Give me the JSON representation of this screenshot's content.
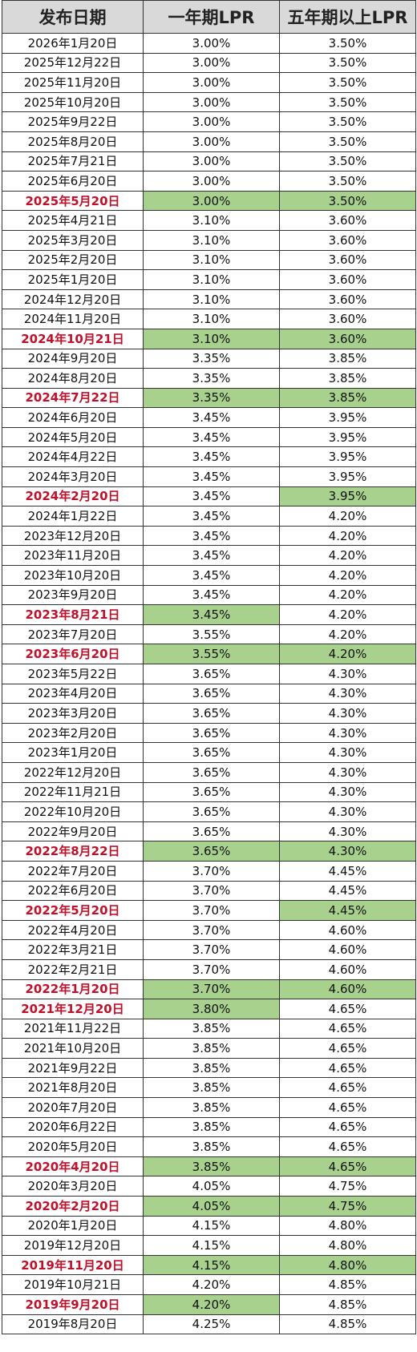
{
  "table": {
    "headers": [
      "发布日期",
      "一年期LPR",
      "五年期以上LPR"
    ],
    "rows": [
      {
        "date": "2026年1月20日",
        "one": "3.00%",
        "five": "3.50%",
        "cut": false,
        "g1": false,
        "g5": false
      },
      {
        "date": "2025年12月22日",
        "one": "3.00%",
        "five": "3.50%",
        "cut": false,
        "g1": false,
        "g5": false
      },
      {
        "date": "2025年11月20日",
        "one": "3.00%",
        "five": "3.50%",
        "cut": false,
        "g1": false,
        "g5": false
      },
      {
        "date": "2025年10月20日",
        "one": "3.00%",
        "five": "3.50%",
        "cut": false,
        "g1": false,
        "g5": false
      },
      {
        "date": "2025年9月22日",
        "one": "3.00%",
        "five": "3.50%",
        "cut": false,
        "g1": false,
        "g5": false
      },
      {
        "date": "2025年8月20日",
        "one": "3.00%",
        "five": "3.50%",
        "cut": false,
        "g1": false,
        "g5": false
      },
      {
        "date": "2025年7月21日",
        "one": "3.00%",
        "five": "3.50%",
        "cut": false,
        "g1": false,
        "g5": false
      },
      {
        "date": "2025年6月20日",
        "one": "3.00%",
        "five": "3.50%",
        "cut": false,
        "g1": false,
        "g5": false
      },
      {
        "date": "2025年5月20日",
        "one": "3.00%",
        "five": "3.50%",
        "cut": true,
        "g1": true,
        "g5": true
      },
      {
        "date": "2025年4月21日",
        "one": "3.10%",
        "five": "3.60%",
        "cut": false,
        "g1": false,
        "g5": false
      },
      {
        "date": "2025年3月20日",
        "one": "3.10%",
        "five": "3.60%",
        "cut": false,
        "g1": false,
        "g5": false
      },
      {
        "date": "2025年2月20日",
        "one": "3.10%",
        "five": "3.60%",
        "cut": false,
        "g1": false,
        "g5": false
      },
      {
        "date": "2025年1月20日",
        "one": "3.10%",
        "five": "3.60%",
        "cut": false,
        "g1": false,
        "g5": false
      },
      {
        "date": "2024年12月20日",
        "one": "3.10%",
        "five": "3.60%",
        "cut": false,
        "g1": false,
        "g5": false
      },
      {
        "date": "2024年11月20日",
        "one": "3.10%",
        "five": "3.60%",
        "cut": false,
        "g1": false,
        "g5": false
      },
      {
        "date": "2024年10月21日",
        "one": "3.10%",
        "five": "3.60%",
        "cut": true,
        "g1": true,
        "g5": true
      },
      {
        "date": "2024年9月20日",
        "one": "3.35%",
        "five": "3.85%",
        "cut": false,
        "g1": false,
        "g5": false
      },
      {
        "date": "2024年8月20日",
        "one": "3.35%",
        "five": "3.85%",
        "cut": false,
        "g1": false,
        "g5": false
      },
      {
        "date": "2024年7月22日",
        "one": "3.35%",
        "five": "3.85%",
        "cut": true,
        "g1": true,
        "g5": true
      },
      {
        "date": "2024年6月20日",
        "one": "3.45%",
        "five": "3.95%",
        "cut": false,
        "g1": false,
        "g5": false
      },
      {
        "date": "2024年5月20日",
        "one": "3.45%",
        "five": "3.95%",
        "cut": false,
        "g1": false,
        "g5": false
      },
      {
        "date": "2024年4月22日",
        "one": "3.45%",
        "five": "3.95%",
        "cut": false,
        "g1": false,
        "g5": false
      },
      {
        "date": "2024年3月20日",
        "one": "3.45%",
        "five": "3.95%",
        "cut": false,
        "g1": false,
        "g5": false
      },
      {
        "date": "2024年2月20日",
        "one": "3.45%",
        "five": "3.95%",
        "cut": true,
        "g1": false,
        "g5": true
      },
      {
        "date": "2024年1月22日",
        "one": "3.45%",
        "five": "4.20%",
        "cut": false,
        "g1": false,
        "g5": false
      },
      {
        "date": "2023年12月20日",
        "one": "3.45%",
        "five": "4.20%",
        "cut": false,
        "g1": false,
        "g5": false
      },
      {
        "date": "2023年11月20日",
        "one": "3.45%",
        "five": "4.20%",
        "cut": false,
        "g1": false,
        "g5": false
      },
      {
        "date": "2023年10月20日",
        "one": "3.45%",
        "five": "4.20%",
        "cut": false,
        "g1": false,
        "g5": false
      },
      {
        "date": "2023年9月20日",
        "one": "3.45%",
        "five": "4.20%",
        "cut": false,
        "g1": false,
        "g5": false
      },
      {
        "date": "2023年8月21日",
        "one": "3.45%",
        "five": "4.20%",
        "cut": true,
        "g1": true,
        "g5": false
      },
      {
        "date": "2023年7月20日",
        "one": "3.55%",
        "five": "4.20%",
        "cut": false,
        "g1": false,
        "g5": false
      },
      {
        "date": "2023年6月20日",
        "one": "3.55%",
        "five": "4.20%",
        "cut": true,
        "g1": true,
        "g5": true
      },
      {
        "date": "2023年5月22日",
        "one": "3.65%",
        "five": "4.30%",
        "cut": false,
        "g1": false,
        "g5": false
      },
      {
        "date": "2023年4月20日",
        "one": "3.65%",
        "five": "4.30%",
        "cut": false,
        "g1": false,
        "g5": false
      },
      {
        "date": "2023年3月20日",
        "one": "3.65%",
        "five": "4.30%",
        "cut": false,
        "g1": false,
        "g5": false
      },
      {
        "date": "2023年2月20日",
        "one": "3.65%",
        "five": "4.30%",
        "cut": false,
        "g1": false,
        "g5": false
      },
      {
        "date": "2023年1月20日",
        "one": "3.65%",
        "five": "4.30%",
        "cut": false,
        "g1": false,
        "g5": false
      },
      {
        "date": "2022年12月20日",
        "one": "3.65%",
        "five": "4.30%",
        "cut": false,
        "g1": false,
        "g5": false
      },
      {
        "date": "2022年11月21日",
        "one": "3.65%",
        "five": "4.30%",
        "cut": false,
        "g1": false,
        "g5": false
      },
      {
        "date": "2022年10月20日",
        "one": "3.65%",
        "five": "4.30%",
        "cut": false,
        "g1": false,
        "g5": false
      },
      {
        "date": "2022年9月20日",
        "one": "3.65%",
        "five": "4.30%",
        "cut": false,
        "g1": false,
        "g5": false
      },
      {
        "date": "2022年8月22日",
        "one": "3.65%",
        "five": "4.30%",
        "cut": true,
        "g1": true,
        "g5": true
      },
      {
        "date": "2022年7月20日",
        "one": "3.70%",
        "five": "4.45%",
        "cut": false,
        "g1": false,
        "g5": false
      },
      {
        "date": "2022年6月20日",
        "one": "3.70%",
        "five": "4.45%",
        "cut": false,
        "g1": false,
        "g5": false
      },
      {
        "date": "2022年5月20日",
        "one": "3.70%",
        "five": "4.45%",
        "cut": true,
        "g1": false,
        "g5": true
      },
      {
        "date": "2022年4月20日",
        "one": "3.70%",
        "five": "4.60%",
        "cut": false,
        "g1": false,
        "g5": false
      },
      {
        "date": "2022年3月21日",
        "one": "3.70%",
        "five": "4.60%",
        "cut": false,
        "g1": false,
        "g5": false
      },
      {
        "date": "2022年2月21日",
        "one": "3.70%",
        "five": "4.60%",
        "cut": false,
        "g1": false,
        "g5": false
      },
      {
        "date": "2022年1月20日",
        "one": "3.70%",
        "five": "4.60%",
        "cut": true,
        "g1": true,
        "g5": true
      },
      {
        "date": "2021年12月20日",
        "one": "3.80%",
        "five": "4.65%",
        "cut": true,
        "g1": true,
        "g5": false
      },
      {
        "date": "2021年11月22日",
        "one": "3.85%",
        "five": "4.65%",
        "cut": false,
        "g1": false,
        "g5": false
      },
      {
        "date": "2021年10月20日",
        "one": "3.85%",
        "five": "4.65%",
        "cut": false,
        "g1": false,
        "g5": false
      },
      {
        "date": "2021年9月22日",
        "one": "3.85%",
        "five": "4.65%",
        "cut": false,
        "g1": false,
        "g5": false
      },
      {
        "date": "2021年8月20日",
        "one": "3.85%",
        "five": "4.65%",
        "cut": false,
        "g1": false,
        "g5": false
      },
      {
        "date": "2020年7月20日",
        "one": "3.85%",
        "five": "4.65%",
        "cut": false,
        "g1": false,
        "g5": false
      },
      {
        "date": "2020年6月22日",
        "one": "3.85%",
        "five": "4.65%",
        "cut": false,
        "g1": false,
        "g5": false
      },
      {
        "date": "2020年5月20日",
        "one": "3.85%",
        "five": "4.65%",
        "cut": false,
        "g1": false,
        "g5": false
      },
      {
        "date": "2020年4月20日",
        "one": "3.85%",
        "five": "4.65%",
        "cut": true,
        "g1": true,
        "g5": true
      },
      {
        "date": "2020年3月20日",
        "one": "4.05%",
        "five": "4.75%",
        "cut": false,
        "g1": false,
        "g5": false
      },
      {
        "date": "2020年2月20日",
        "one": "4.05%",
        "five": "4.75%",
        "cut": true,
        "g1": true,
        "g5": true
      },
      {
        "date": "2020年1月20日",
        "one": "4.15%",
        "five": "4.80%",
        "cut": false,
        "g1": false,
        "g5": false
      },
      {
        "date": "2019年12月20日",
        "one": "4.15%",
        "five": "4.80%",
        "cut": false,
        "g1": false,
        "g5": false
      },
      {
        "date": "2019年11月20日",
        "one": "4.15%",
        "five": "4.80%",
        "cut": true,
        "g1": true,
        "g5": true
      },
      {
        "date": "2019年10月21日",
        "one": "4.20%",
        "five": "4.85%",
        "cut": false,
        "g1": false,
        "g5": false
      },
      {
        "date": "2019年9月20日",
        "one": "4.20%",
        "five": "4.85%",
        "cut": true,
        "g1": true,
        "g5": false
      },
      {
        "date": "2019年8月20日",
        "one": "4.25%",
        "five": "4.85%",
        "cut": false,
        "g1": false,
        "g5": false
      }
    ]
  }
}
